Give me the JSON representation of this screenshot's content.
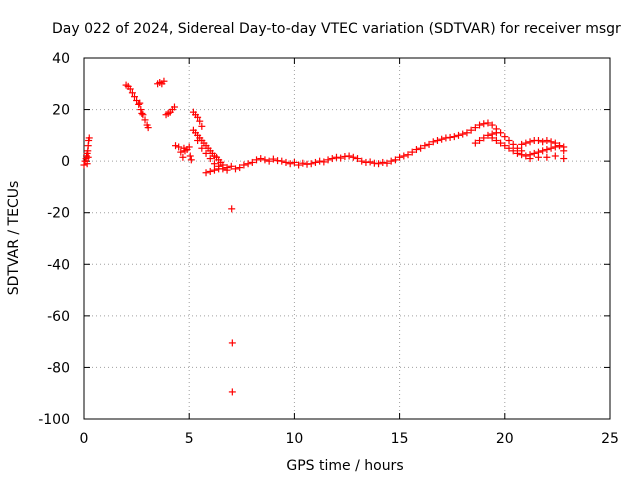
{
  "chart_data": {
    "type": "scatter",
    "title": "Day 022 of 2024, Sidereal Day-to-day VTEC variation (SDTVAR) for receiver msgr",
    "xlabel": "GPS time / hours",
    "ylabel": "SDTVAR / TECUs",
    "xlim": [
      0,
      25
    ],
    "ylim": [
      -100,
      40
    ],
    "xticks": [
      0,
      5,
      10,
      15,
      20,
      25
    ],
    "yticks": [
      40,
      20,
      0,
      -20,
      -40,
      -60,
      -80,
      -100
    ],
    "grid": true,
    "marker": "+",
    "colors": {
      "series": "#ff0000",
      "grid": "#a0a0a0",
      "axis": "#000000"
    },
    "series": [
      {
        "name": "SDTVAR",
        "x": [
          0.0,
          0.05,
          0.1,
          0.12,
          0.15,
          0.18,
          0.2,
          0.22,
          0.25,
          0.15,
          0.2,
          2.0,
          2.1,
          2.2,
          2.3,
          2.4,
          2.5,
          2.6,
          2.7,
          2.8,
          2.9,
          3.0,
          3.05,
          2.65,
          2.75,
          3.5,
          3.6,
          3.7,
          3.8,
          3.9,
          4.0,
          4.1,
          4.2,
          4.3,
          4.35,
          4.5,
          4.6,
          4.7,
          4.75,
          4.8,
          4.9,
          5.0,
          5.05,
          5.1,
          5.2,
          5.3,
          5.4,
          5.5,
          5.6,
          5.2,
          5.3,
          5.4,
          5.5,
          5.6,
          5.7,
          5.8,
          5.9,
          6.0,
          6.1,
          6.2,
          6.3,
          6.4,
          6.5,
          6.6,
          5.4,
          5.6,
          5.8,
          6.0,
          6.2,
          6.4,
          6.6,
          6.8,
          5.8,
          6.0,
          6.2,
          6.4,
          6.8,
          7.0,
          7.2,
          7.4,
          7.6,
          7.8,
          8.0,
          8.2,
          8.4,
          8.6,
          8.8,
          9.0,
          9.2,
          9.4,
          9.6,
          9.8,
          10.0,
          10.2,
          10.4,
          10.6,
          10.8,
          11.0,
          11.2,
          11.4,
          11.6,
          11.8,
          12.0,
          12.2,
          12.4,
          12.6,
          12.8,
          13.0,
          13.2,
          13.4,
          13.6,
          13.8,
          14.0,
          14.2,
          14.4,
          14.6,
          14.8,
          15.0,
          15.2,
          15.4,
          15.6,
          15.8,
          16.0,
          16.2,
          16.4,
          16.6,
          16.8,
          17.0,
          17.2,
          17.4,
          17.6,
          17.8,
          18.0,
          18.2,
          18.4,
          18.6,
          18.8,
          19.0,
          19.2,
          19.4,
          19.6,
          19.8,
          20.0,
          20.2,
          20.4,
          20.6,
          20.8,
          18.6,
          18.8,
          19.0,
          19.2,
          19.4,
          19.6,
          19.4,
          19.6,
          19.8,
          20.0,
          20.2,
          20.4,
          20.6,
          20.8,
          21.0,
          21.2,
          21.4,
          21.6,
          21.8,
          22.0,
          22.2,
          22.4,
          22.6,
          22.8,
          20.8,
          21.0,
          21.2,
          21.4,
          21.6,
          21.8,
          22.0,
          22.2,
          22.4,
          22.6,
          22.8,
          21.2,
          21.6,
          22.0,
          22.4,
          22.8,
          7.02,
          7.05,
          7.05
        ],
        "y": [
          -1.5,
          0.0,
          1.0,
          2.0,
          3.0,
          4.0,
          6.0,
          8.0,
          9.0,
          -1.0,
          1.5,
          29.5,
          29.0,
          28.0,
          26.5,
          25.0,
          23.5,
          22.0,
          20.0,
          18.0,
          16.0,
          14.0,
          13.0,
          22.5,
          18.5,
          30.0,
          30.5,
          30.0,
          31.0,
          18.0,
          18.5,
          19.0,
          20.0,
          21.0,
          6.0,
          5.5,
          3.5,
          1.5,
          5.0,
          4.0,
          4.5,
          5.5,
          2.0,
          0.5,
          19.0,
          18.0,
          17.0,
          15.5,
          13.5,
          12.0,
          11.0,
          10.0,
          9.0,
          8.0,
          7.0,
          6.0,
          5.0,
          4.0,
          3.0,
          2.0,
          1.5,
          0.5,
          -0.5,
          -1.5,
          8.0,
          5.0,
          3.0,
          1.0,
          -1.0,
          -2.0,
          -3.0,
          -3.5,
          -4.5,
          -4.0,
          -3.5,
          -3.0,
          -2.5,
          -2.0,
          -3.0,
          -2.5,
          -1.5,
          -1.0,
          -0.5,
          0.5,
          1.0,
          0.5,
          0.0,
          0.8,
          0.2,
          0.0,
          -0.5,
          -1.0,
          -0.5,
          -1.5,
          -0.8,
          -1.2,
          -1.0,
          -0.5,
          0.0,
          -0.3,
          0.5,
          1.0,
          1.5,
          1.2,
          1.8,
          2.0,
          1.5,
          1.0,
          0.0,
          -0.5,
          -0.3,
          -0.8,
          -1.0,
          -0.5,
          -0.8,
          0.0,
          0.5,
          1.5,
          2.0,
          2.5,
          3.5,
          4.5,
          5.0,
          6.0,
          6.5,
          7.5,
          8.0,
          8.5,
          9.0,
          9.2,
          9.5,
          10.0,
          10.5,
          11.0,
          12.0,
          13.0,
          14.0,
          14.5,
          14.8,
          14.0,
          12.5,
          11.0,
          9.5,
          8.0,
          6.5,
          5.0,
          4.0,
          7.0,
          8.0,
          9.0,
          10.0,
          10.5,
          11.0,
          9.0,
          8.0,
          7.0,
          6.0,
          5.0,
          4.0,
          3.0,
          2.5,
          2.0,
          2.5,
          3.0,
          3.5,
          4.0,
          4.5,
          5.0,
          5.5,
          6.0,
          5.5,
          6.5,
          7.0,
          7.5,
          8.0,
          8.0,
          7.5,
          8.0,
          7.5,
          7.0,
          6.0,
          4.0,
          1.0,
          1.5,
          1.5,
          2.0,
          1.0,
          -18.5,
          -70.5,
          -89.5
        ]
      }
    ]
  }
}
